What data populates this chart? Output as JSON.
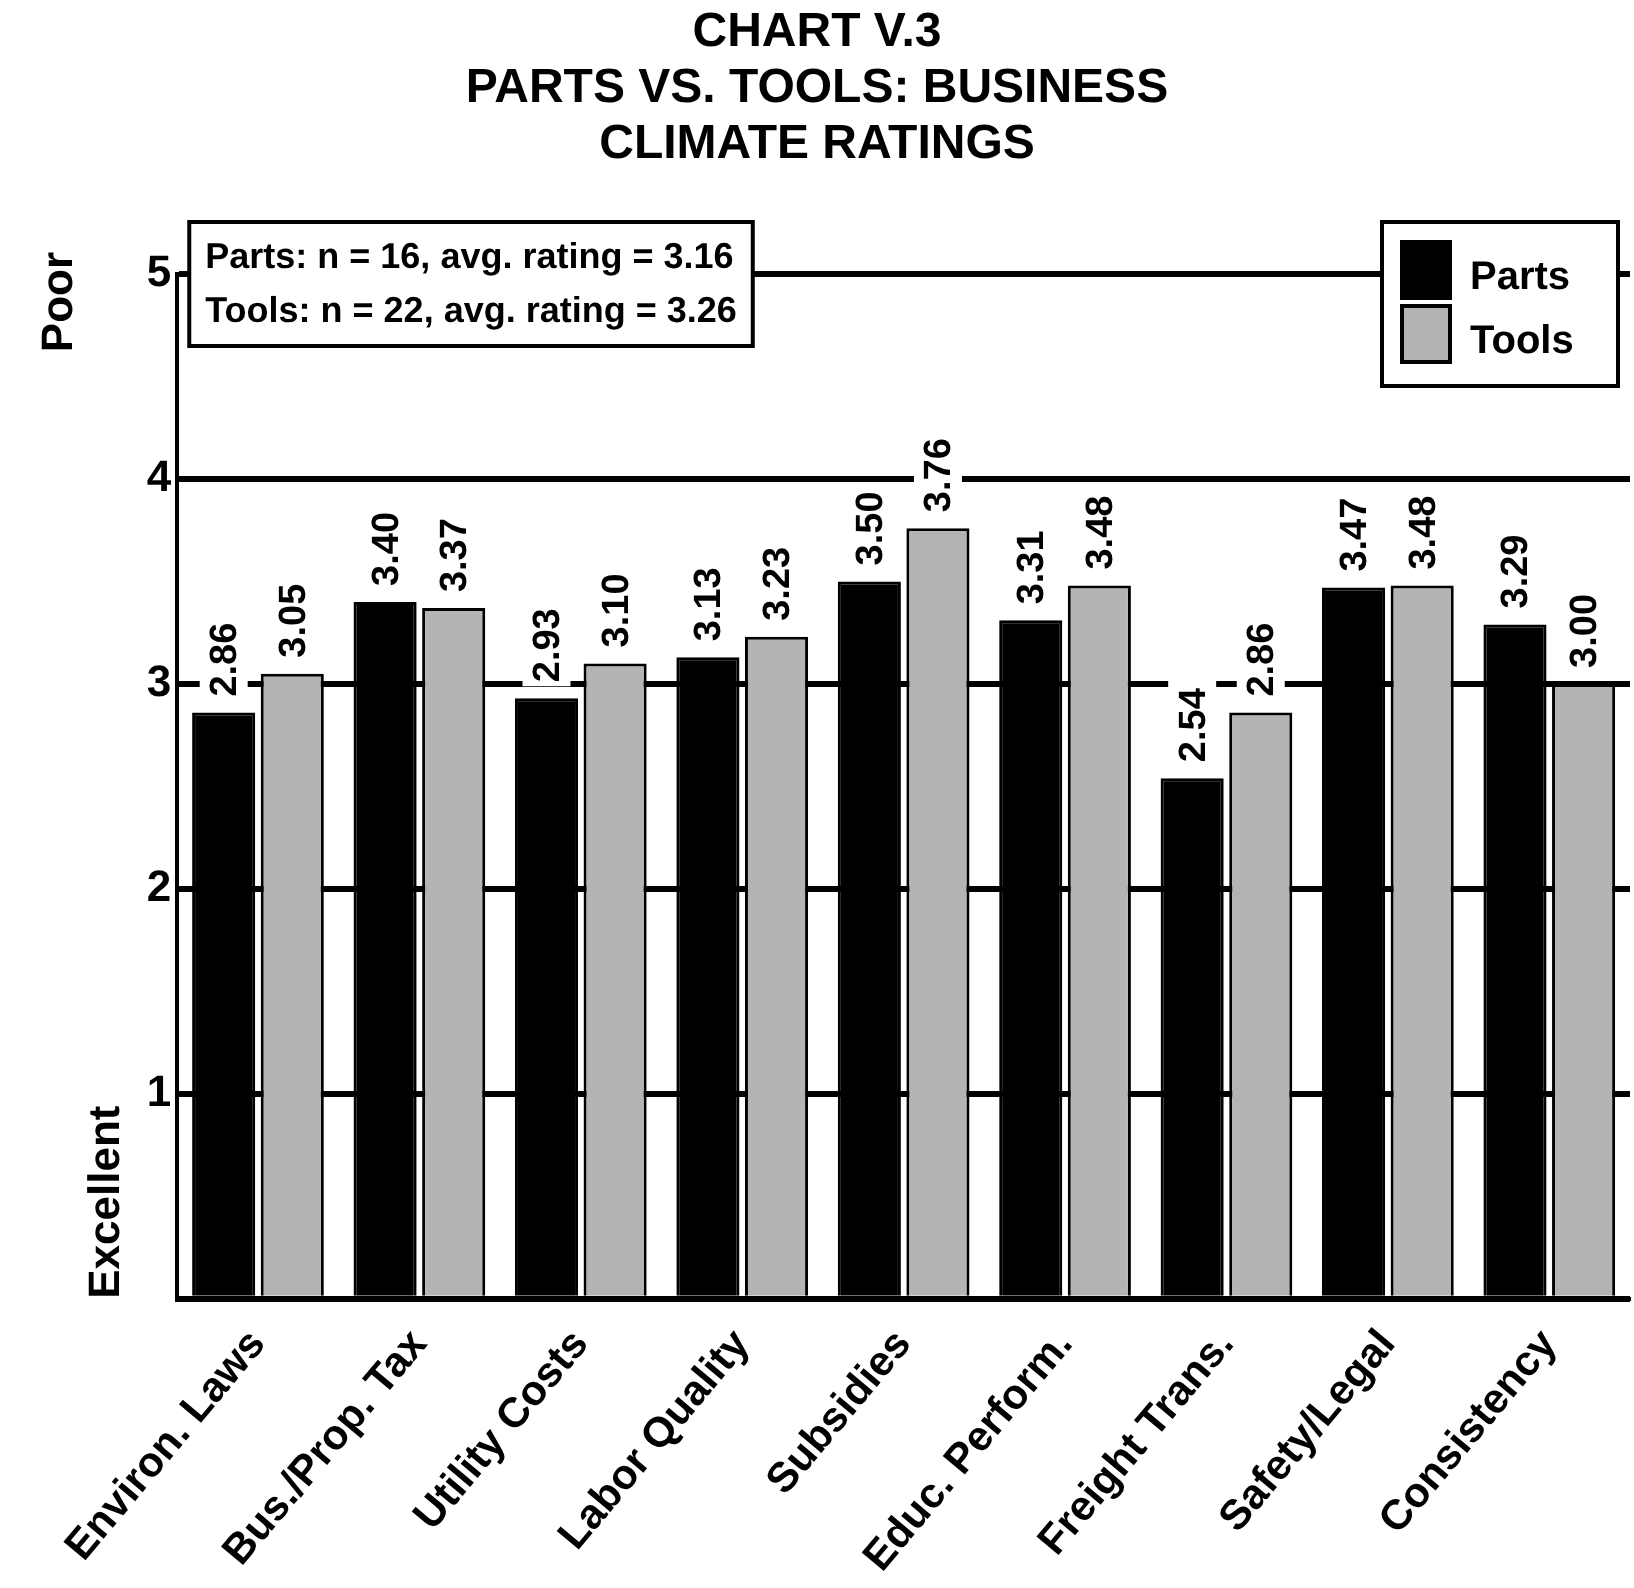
{
  "chart_data": {
    "type": "bar",
    "title": "CHART V.3",
    "subtitle": "PARTS VS. TOOLS: BUSINESS CLIMATE RATINGS",
    "ylabel": "Excellent",
    "categories": [
      "Environ. Laws",
      "Bus./Prop. Tax",
      "Utility Costs",
      "Labor Quality",
      "Subsidies",
      "Educ. Perform.",
      "Freight Trans.",
      "Safety/Legal",
      "Consistency"
    ],
    "series": [
      {
        "name": "Parts",
        "color": "#000000",
        "values": [
          2.86,
          3.4,
          2.93,
          3.13,
          3.5,
          3.31,
          2.54,
          3.47,
          3.29
        ],
        "value_labels": [
          "2.86",
          "3.40",
          "2.93",
          "3.13",
          "3.50",
          "3.31",
          "2.54",
          "3.47",
          "3.29"
        ]
      },
      {
        "name": "Tools",
        "color": "#b4b4b4",
        "values": [
          3.05,
          3.37,
          3.1,
          3.23,
          3.76,
          3.48,
          2.86,
          3.48,
          3.0
        ],
        "value_labels": [
          "3.05",
          "3.37",
          "3.10",
          "3.23",
          "3.76",
          "3.48",
          "2.86",
          "3.48",
          "3.00"
        ]
      }
    ],
    "annotations": [
      "Parts: n = 16, avg. rating = 3.16",
      "Tools: n = 22, avg. rating = 3.26",
      "Poor"
    ],
    "ylim": [
      0,
      5
    ],
    "yticks": [
      {
        "value": 0,
        "label": null
      },
      1,
      2,
      3,
      4,
      5
    ],
    "grid": "y",
    "legend": "top right"
  }
}
